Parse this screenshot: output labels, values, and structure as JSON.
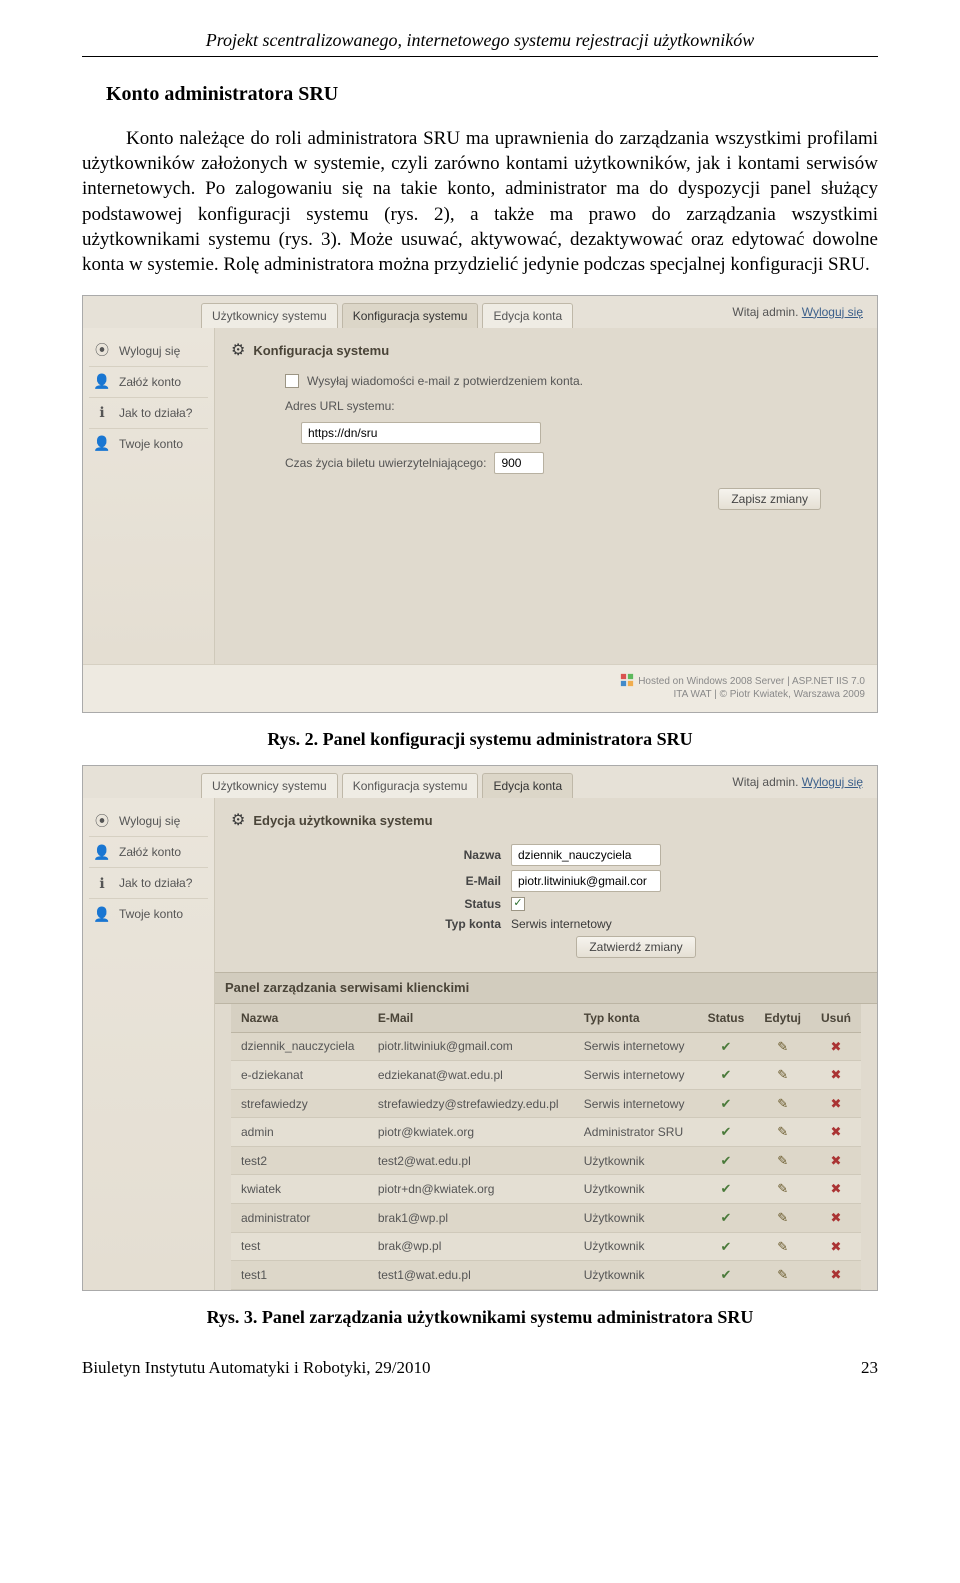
{
  "doc": {
    "running_header": "Projekt scentralizowanego, internetowego systemu rejestracji użytkowników",
    "heading": "Konto administratora SRU",
    "paragraph": "Konto należące do roli administratora SRU ma uprawnienia do zarządzania wszystkimi profilami użytkowników założonych w systemie, czyli zarówno kontami użytkowników, jak i kontami serwisów internetowych. Po zalogowaniu się na takie konto, administrator ma do dyspozycji panel służący podstawowej konfiguracji systemu (rys. 2), a także ma prawo do zarządzania wszystkimi użytkownikami systemu (rys. 3). Może usuwać, aktywować, dezaktywować oraz edytować dowolne konta w systemie. Rolę administratora można przydzielić jedynie podczas specjalnej konfiguracji SRU.",
    "caption2_bold": "Rys. 2. Panel konfiguracji systemu administratora SRU",
    "caption3_bold": "Rys. 3. Panel zarządzania użytkownikami systemu administratora SRU",
    "journal_line": "Biuletyn Instytutu Automatyki i Robotyki, 29/2010",
    "page_number": "23"
  },
  "ui": {
    "tabs": {
      "users": "Użytkownicy systemu",
      "config": "Konfiguracja systemu",
      "edit": "Edycja konta"
    },
    "welcome_prefix": "Witaj ",
    "welcome_user": "admin",
    "welcome_sep": ".  ",
    "logout_link": "Wyloguj się",
    "sidebar": {
      "logout": "Wyloguj się",
      "create": "Załóż konto",
      "how": "Jak to działa?",
      "your": "Twoje konto"
    },
    "footer": {
      "line1": "Hosted on Windows 2008 Server | ASP.NET IIS 7.0",
      "line2": "ITA WAT | © Piotr Kwiatek, Warszawa 2009"
    }
  },
  "shot1": {
    "panel_title": "Konfiguracja systemu",
    "chk_label": "Wysyłaj wiadomości e-mail z potwierdzeniem konta.",
    "url_label": "Adres URL systemu:",
    "url_value": "https://dn/sru",
    "ticket_label": "Czas życia biletu uwierzytelniającego:",
    "ticket_value": "900",
    "save_btn": "Zapisz zmiany"
  },
  "shot2": {
    "panel_title": "Edycja użytkownika systemu",
    "labels": {
      "name": "Nazwa",
      "email": "E-Mail",
      "status": "Status",
      "type": "Typ konta"
    },
    "values": {
      "name": "dziennik_nauczyciela",
      "email": "piotr.litwiniuk@gmail.cor",
      "type": "Serwis internetowy"
    },
    "confirm_btn": "Zatwierdź zmiany",
    "mgmt_title": "Panel zarządzania serwisami klienckimi",
    "columns": {
      "name": "Nazwa",
      "email": "E-Mail",
      "type": "Typ konta",
      "status": "Status",
      "edit": "Edytuj",
      "del": "Usuń"
    },
    "rows": [
      {
        "name": "dziennik_nauczyciela",
        "email": "piotr.litwiniuk@gmail.com",
        "type": "Serwis internetowy"
      },
      {
        "name": "e-dziekanat",
        "email": "edziekanat@wat.edu.pl",
        "type": "Serwis internetowy"
      },
      {
        "name": "strefawiedzy",
        "email": "strefawiedzy@strefawiedzy.edu.pl",
        "type": "Serwis internetowy"
      },
      {
        "name": "admin",
        "email": "piotr@kwiatek.org",
        "type": "Administrator SRU"
      },
      {
        "name": "test2",
        "email": "test2@wat.edu.pl",
        "type": "Użytkownik"
      },
      {
        "name": "kwiatek",
        "email": "piotr+dn@kwiatek.org",
        "type": "Użytkownik"
      },
      {
        "name": "administrator",
        "email": "brak1@wp.pl",
        "type": "Użytkownik"
      },
      {
        "name": "test",
        "email": "brak@wp.pl",
        "type": "Użytkownik"
      },
      {
        "name": "test1",
        "email": "test1@wat.edu.pl",
        "type": "Użytkownik"
      }
    ]
  }
}
